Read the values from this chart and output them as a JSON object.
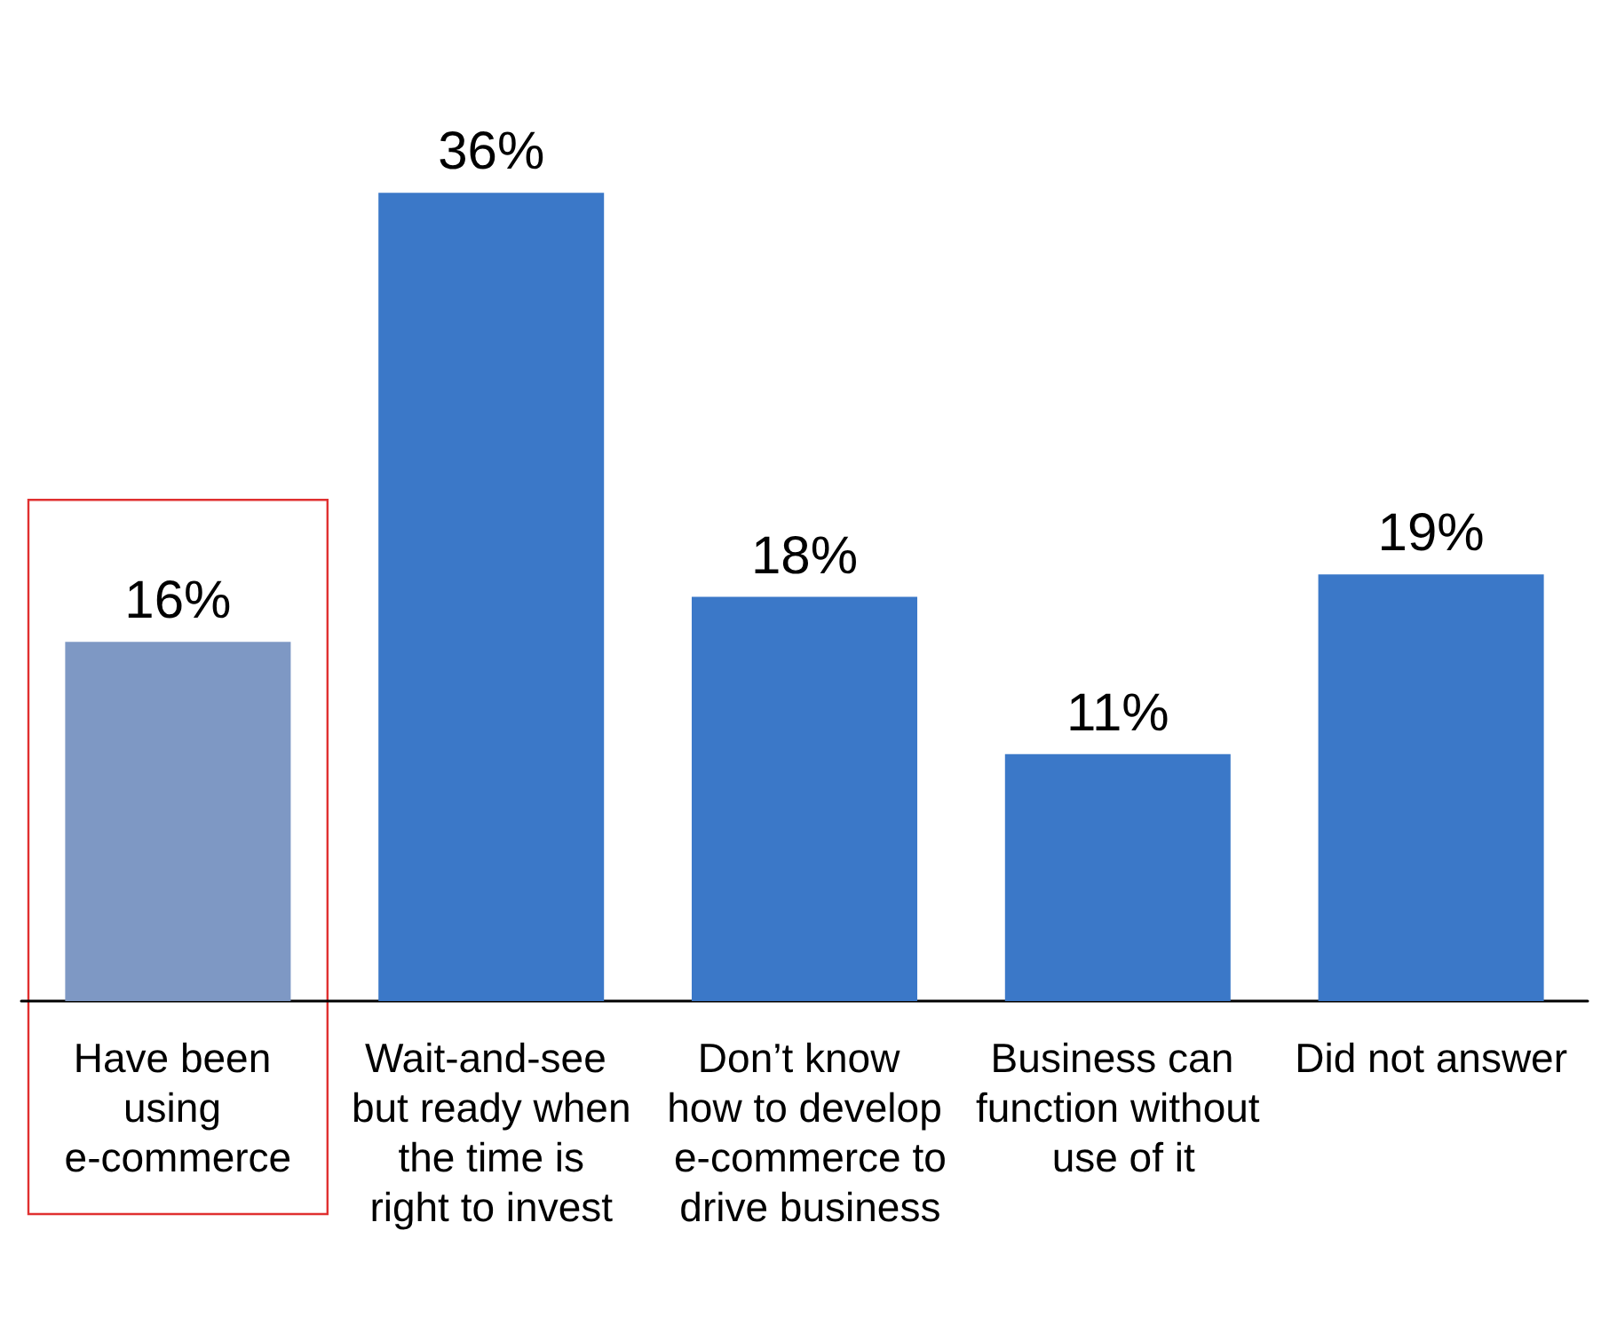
{
  "chart_data": {
    "type": "bar",
    "categories": [
      "Have been using e-commerce",
      "Wait-and-see but ready when the time is right to invest",
      "Don’t know how to develop e-commerce to drive business",
      "Business can function without use of it",
      "Did not answer"
    ],
    "values": [
      16,
      36,
      18,
      11,
      19
    ],
    "colors": [
      "#7e98c4",
      "#3b78c8",
      "#3b78c8",
      "#3b78c8",
      "#3b78c8"
    ],
    "value_labels": [
      "16%",
      "36%",
      "18%",
      "11%",
      "19%"
    ]
  }
}
